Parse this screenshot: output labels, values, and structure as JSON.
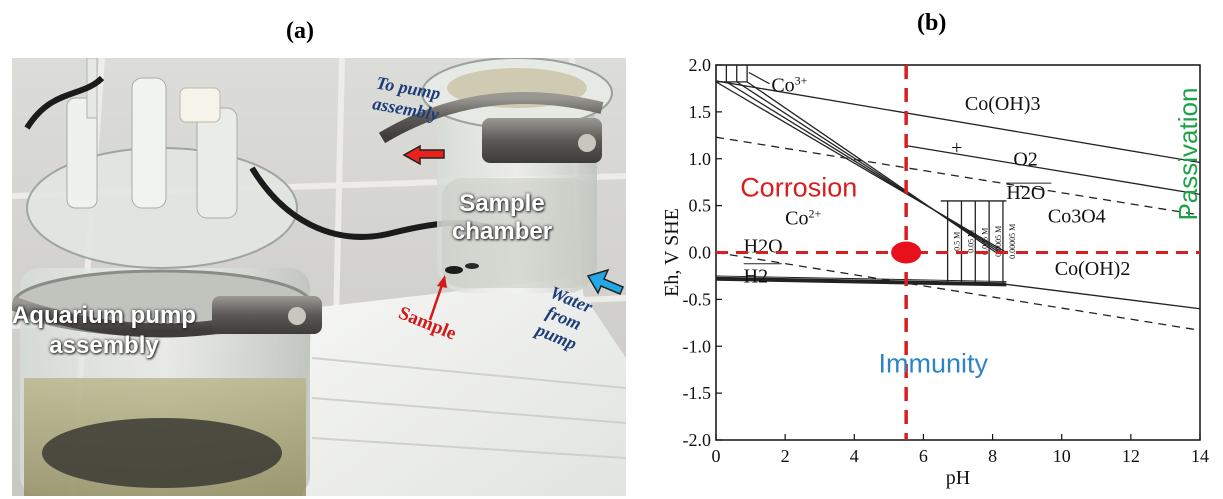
{
  "panels": {
    "a": {
      "label": "(a)",
      "annotations": {
        "to_pump": "To pump\nassembly",
        "sample_chamber": "Sample\nchamber",
        "water_from_pump": "Water\nfrom\npump",
        "sample": "Sample",
        "aquarium": "Aquarium pump\nassembly"
      },
      "arrow_colors": {
        "to_pump": "#e8231c",
        "water_from_pump": "#22a8e6",
        "sample": "#d21a1a"
      }
    },
    "b": {
      "label": "(b)",
      "overlay_labels": {
        "corrosion": "Corrosion",
        "immunity": "Immunity",
        "passivation": "Passivation"
      },
      "region_labels": {
        "co3plus": "Co",
        "co3plus_sup": "3+",
        "co2plus": "Co",
        "co2plus_sup": "2+",
        "co_oh3": "Co(OH)3",
        "co3o4": "Co3O4",
        "co_oh2": "Co(OH)2",
        "o2": "O2",
        "h2o_top": "H2O",
        "h2o_low": "H2O",
        "h2": "H2",
        "plus": "+"
      },
      "concentration_labels": [
        "0.5 M",
        "0.05 M",
        "0.005 M",
        "0.0005 M",
        "0.00005 M"
      ],
      "colors": {
        "corrosion": "#d81e1e",
        "immunity": "#2e85c6",
        "passivation": "#1ba346",
        "marker": "#e8101a"
      }
    }
  },
  "chart_data": {
    "type": "diagram",
    "title": "",
    "xlabel": "pH",
    "ylabel": "Eh, V SHE",
    "xlim": [
      0,
      14
    ],
    "ylim": [
      -2.0,
      2.0
    ],
    "x_ticks": [
      0,
      2,
      4,
      6,
      8,
      10,
      12,
      14
    ],
    "y_ticks": [
      2.0,
      1.5,
      1.0,
      0.5,
      0.0,
      -0.5,
      -1.0,
      -1.5,
      -2.0
    ],
    "y_tick_labels": [
      "2.0",
      "1.5",
      "1.0",
      "0.5",
      "0.0",
      "-0.5",
      "-1.0",
      "-1.5",
      "-2.0"
    ],
    "reference_lines": {
      "vertical_pH": 5.5,
      "horizontal_Eh": 0.0
    },
    "marker": {
      "pH": 5.5,
      "Eh": 0.0
    },
    "boundaries": {
      "co_oh3_upper": [
        [
          0,
          1.83
        ],
        [
          14,
          0.96
        ]
      ],
      "o2_h2o": [
        [
          0,
          1.23
        ],
        [
          14,
          0.4
        ]
      ],
      "co3o4_co_oh3": [
        [
          5.5,
          1.14
        ],
        [
          14,
          0.62
        ]
      ],
      "co3o4_co_oh2": [
        [
          8.4,
          -0.34
        ],
        [
          14,
          -0.6
        ]
      ],
      "h2o_h2": [
        [
          0,
          0.0
        ],
        [
          14,
          -0.83
        ]
      ],
      "co2plus_lower": [
        [
          0,
          -0.28
        ],
        [
          8.4,
          -0.34
        ]
      ],
      "co_oxides_fan": [
        [
          [
            0,
            1.82
          ],
          [
            8.4,
            0.0
          ]
        ],
        [
          [
            0.3,
            1.82
          ],
          [
            8.3,
            0.0
          ]
        ],
        [
          [
            0.6,
            1.82
          ],
          [
            8.2,
            0.0
          ]
        ],
        [
          [
            0.9,
            1.82
          ],
          [
            8.1,
            0.0
          ]
        ]
      ],
      "concentration_verticals_pH": [
        6.7,
        7.1,
        7.5,
        7.9,
        8.3
      ]
    }
  }
}
